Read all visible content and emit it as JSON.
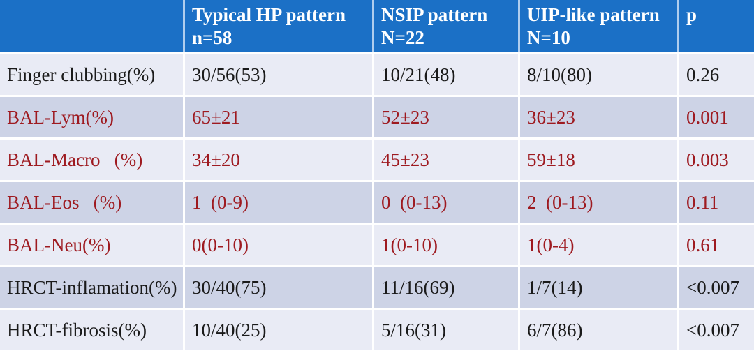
{
  "colors": {
    "header_bg": "#1B70C6",
    "header_text": "#FFFFFF",
    "divider_header": "#AFCDEE",
    "band_dark": "#CDD3E6",
    "band_light": "#E9EBF5",
    "red": "#9E1A20",
    "black": "#1A1A1A"
  },
  "chart_data": {
    "type": "table",
    "header": [
      {
        "label": "",
        "sub": ""
      },
      {
        "label": "Typical HP pattern",
        "sub": "n=58"
      },
      {
        "label": "NSIP pattern",
        "sub": "N=22"
      },
      {
        "label": "UIP-like pattern",
        "sub": "N=10"
      },
      {
        "label": "p",
        "sub": ""
      }
    ],
    "rows": [
      {
        "label": "Finger clubbing(%)",
        "values": [
          "30/56(53)",
          "10/21(48)",
          "8/10(80)",
          "0.26"
        ],
        "text_color": "black"
      },
      {
        "label": "BAL-Lym(%)",
        "values": [
          "65±21",
          "52±23",
          "36±23",
          "0.001"
        ],
        "text_color": "red"
      },
      {
        "label": "BAL-Macro   (%)",
        "values": [
          "34±20",
          "45±23",
          "59±18",
          "0.003"
        ],
        "text_color": "red"
      },
      {
        "label": "BAL-Eos   (%)",
        "values": [
          "1  (0-9)",
          "0  (0-13)",
          "2  (0-13)",
          "0.11"
        ],
        "text_color": "red"
      },
      {
        "label": "BAL-Neu(%)",
        "values": [
          "0(0-10)",
          "1(0-10)",
          "1(0-4)",
          "0.61"
        ],
        "text_color": "red"
      },
      {
        "label": "HRCT-inflamation(%)",
        "values": [
          "30/40(75)",
          "11/16(69)",
          "1/7(14)",
          "<0.007"
        ],
        "text_color": "black"
      },
      {
        "label": "HRCT-fibrosis(%)",
        "values": [
          "10/40(25)",
          "5/16(31)",
          "6/7(86)",
          "<0.007"
        ],
        "text_color": "black"
      }
    ]
  }
}
